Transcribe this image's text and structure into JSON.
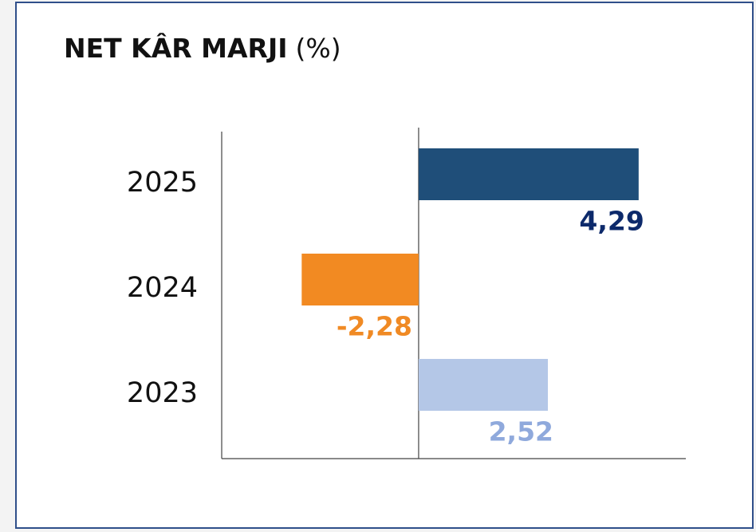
{
  "chart_data": {
    "type": "bar",
    "orientation": "horizontal",
    "title": "NET KÂR MARJI",
    "unit": "(%)",
    "categories": [
      "2025",
      "2024",
      "2023"
    ],
    "values": [
      4.29,
      -2.28,
      2.52
    ],
    "value_labels": [
      "4,29",
      "-2,28",
      "2,52"
    ],
    "colors": [
      "#1f4e79",
      "#f28a22",
      "#b4c7e7"
    ],
    "label_colors": [
      "#0d2a6b",
      "#f08a24",
      "#8fa9dc"
    ],
    "xlim": [
      -3.84,
      5.21
    ]
  }
}
